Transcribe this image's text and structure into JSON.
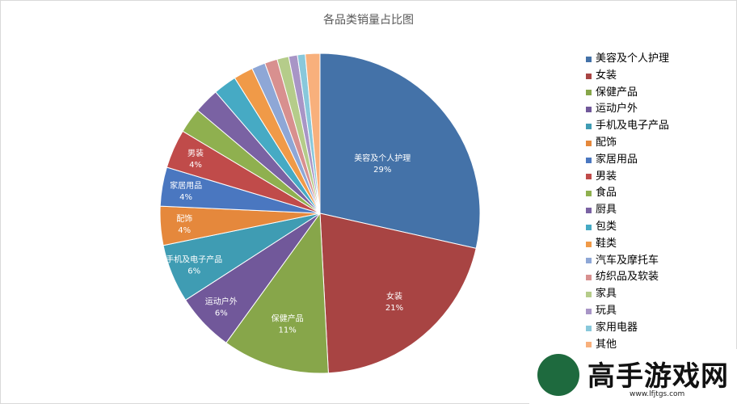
{
  "chart_data": {
    "type": "pie",
    "title": "各品类销量占比图",
    "legend_position": "right",
    "slices": [
      {
        "name": "美容及个人护理",
        "value": 29,
        "label": "29%",
        "color": "#4472a8"
      },
      {
        "name": "女装",
        "value": 21,
        "label": "21%",
        "color": "#a84443"
      },
      {
        "name": "保健产品",
        "value": 11,
        "label": "11%",
        "color": "#87a64a"
      },
      {
        "name": "运动户外",
        "value": 6,
        "label": "6%",
        "color": "#71589a"
      },
      {
        "name": "手机及电子产品",
        "value": 6,
        "label": "6%",
        "color": "#3f9cb3"
      },
      {
        "name": "配饰",
        "value": 4,
        "label": "4%",
        "color": "#e5883c"
      },
      {
        "name": "家居用品",
        "value": 4,
        "label": "4%",
        "color": "#4a77c0"
      },
      {
        "name": "男装",
        "value": 4,
        "label": "4%",
        "color": "#c04b4a"
      },
      {
        "name": "食品",
        "value": 2.6,
        "label": "",
        "color": "#8fb04f"
      },
      {
        "name": "厨具",
        "value": 2.6,
        "label": "",
        "color": "#7a62a3"
      },
      {
        "name": "包类",
        "value": 2.4,
        "label": "",
        "color": "#46aac4"
      },
      {
        "name": "鞋类",
        "value": 2.0,
        "label": "",
        "color": "#f09a48"
      },
      {
        "name": "汽车及摩托车",
        "value": 1.4,
        "label": "",
        "color": "#8ea7d6"
      },
      {
        "name": "纺织品及软装",
        "value": 1.3,
        "label": "",
        "color": "#d8908f"
      },
      {
        "name": "家具",
        "value": 1.2,
        "label": "",
        "color": "#b5cc8a"
      },
      {
        "name": "玩具",
        "value": 0.9,
        "label": "",
        "color": "#a895c6"
      },
      {
        "name": "家用电器",
        "value": 0.8,
        "label": "",
        "color": "#88c8db"
      },
      {
        "name": "其他",
        "value": 1.5,
        "label": "",
        "color": "#f8b07c"
      }
    ]
  },
  "watermark": {
    "title": "高手游戏网",
    "url": "www.lfjtgs.com"
  }
}
